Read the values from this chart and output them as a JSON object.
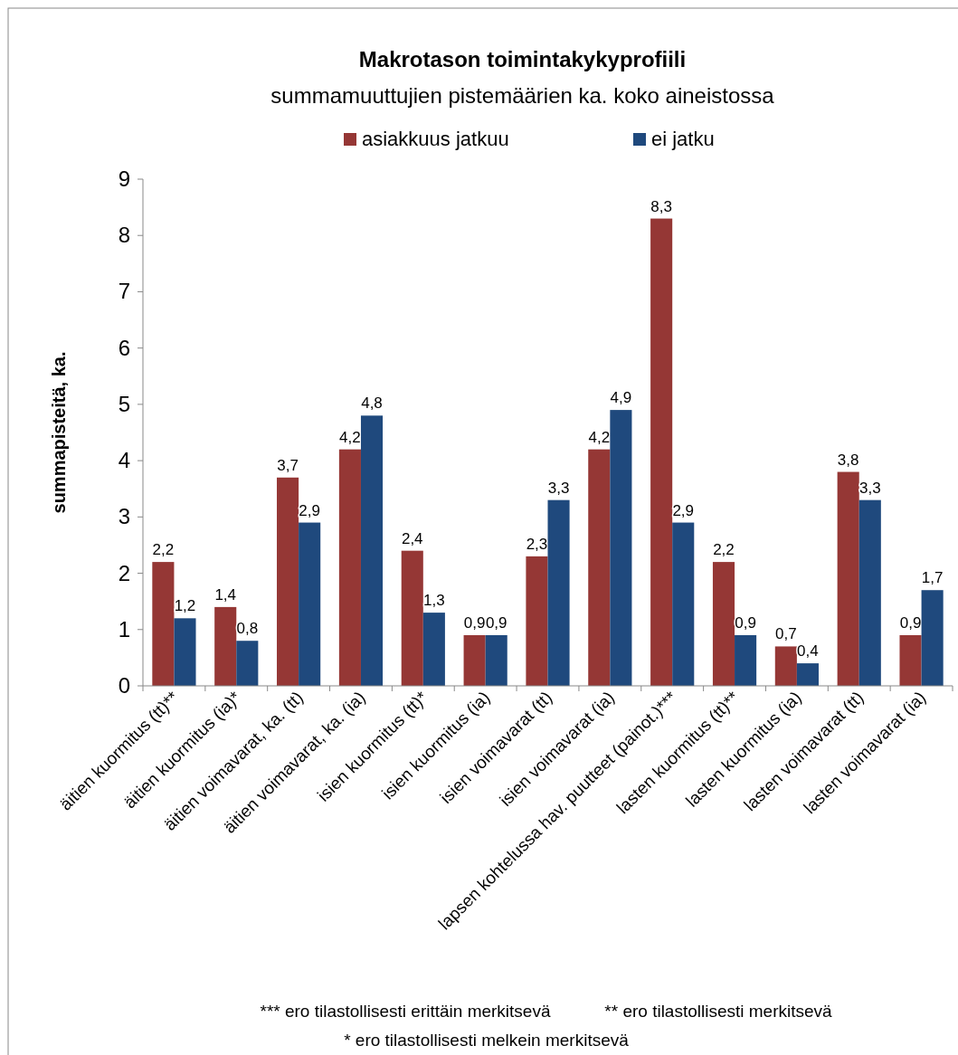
{
  "chart_data": {
    "type": "bar",
    "title": "Makrotason toimintakykyprofiili",
    "subtitle": "summamuuttujien pistemäärien ka. koko aineistossa",
    "ylabel": "summapisteitä, ka.",
    "categories": [
      "äitien kuormitus (tt)**",
      "äitien kuormitus (ia)*",
      "äitien voimavarat, ka. (tt)",
      "äitien voimavarat, ka. (ia)",
      "isien kuormitus (tt)*",
      "isien kuormitus (ia)",
      "isien voimavarat (tt)",
      "isien voimavarat (ia)",
      "lapsen kohtelussa hav. puutteet (painot.)***",
      "lasten kuormitus (tt)**",
      "lasten kuormitus (ia)",
      "lasten voimavarat (tt)",
      "lasten voimavarat (ia)"
    ],
    "series": [
      {
        "name": "asiakkuus jatkuu",
        "color": "#953735",
        "values": [
          2.2,
          1.4,
          3.7,
          4.2,
          2.4,
          0.9,
          2.3,
          4.2,
          8.3,
          2.2,
          0.7,
          3.8,
          0.9
        ],
        "value_labels": [
          "2,2",
          "1,4",
          "3,7",
          "4,2",
          "2,4",
          "0,9",
          "2,3",
          "4,2",
          "8,3",
          "2,2",
          "0,7",
          "3,8",
          "0,9"
        ]
      },
      {
        "name": "ei jatku",
        "color": "#1f497d",
        "values": [
          1.2,
          0.8,
          2.9,
          4.8,
          1.3,
          0.9,
          3.3,
          4.9,
          2.9,
          0.9,
          0.4,
          3.3,
          1.7
        ],
        "value_labels": [
          "1,2",
          "0,8",
          "2,9",
          "4,8",
          "1,3",
          "0,9",
          "3,3",
          "4,9",
          "2,9",
          "0,9",
          "0,4",
          "3,3",
          "1,7"
        ]
      }
    ],
    "ylim": [
      0,
      9
    ],
    "yticks": [
      0,
      1,
      2,
      3,
      4,
      5,
      6,
      7,
      8,
      9
    ],
    "legend": "top",
    "annotations": [
      "*** ero tilastollisesti erittäin merkitsevä",
      "** ero tilastollisesti merkitsevä",
      "* ero tilastollisesti melkein merkitsevä"
    ]
  }
}
